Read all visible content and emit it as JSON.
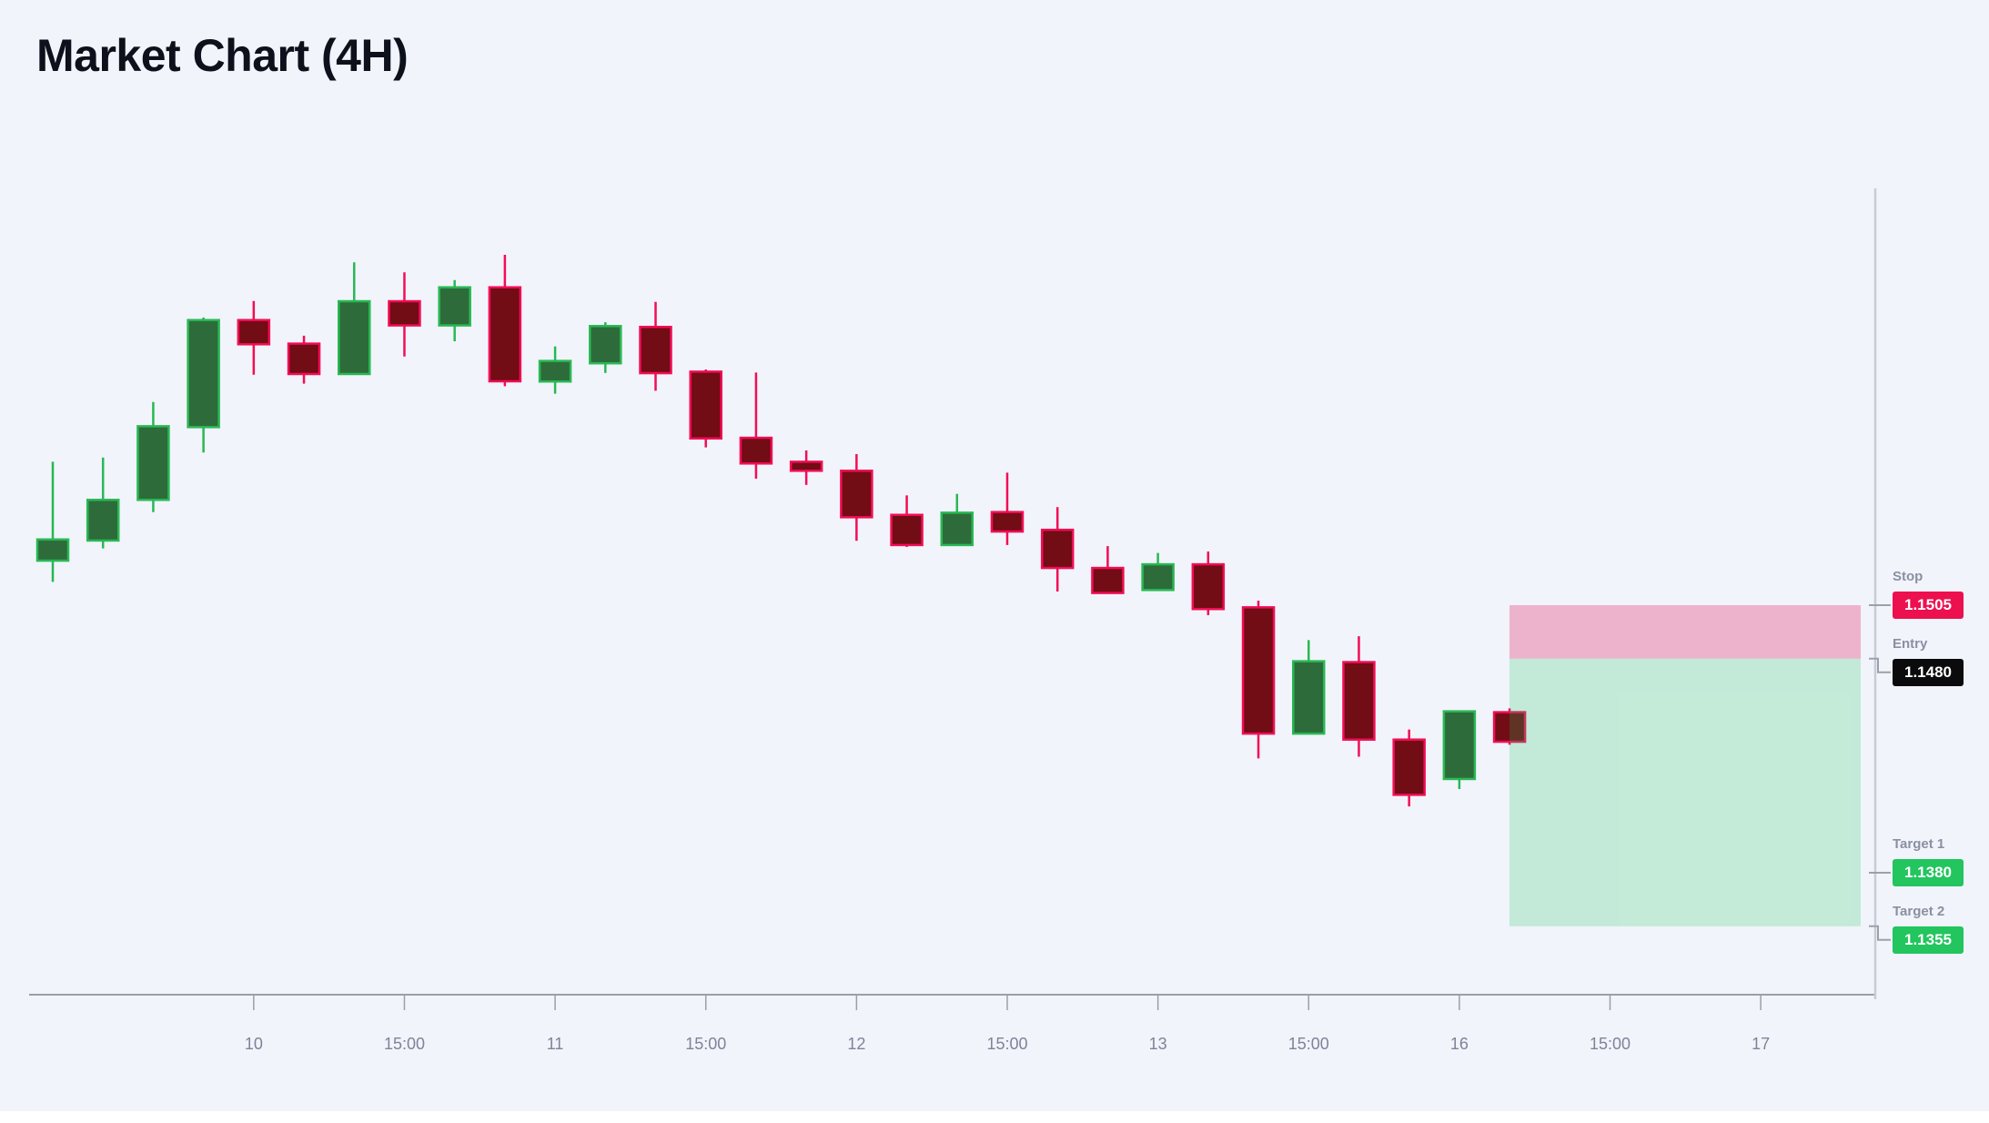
{
  "title": "Market Chart (4H)",
  "colors": {
    "background": "#f1f4fa",
    "bull_border": "#28b854",
    "bull_fill": "#2e6b3a",
    "bear_border": "#f20d56",
    "bear_fill": "#720c15",
    "axis_line": "#9b9fa8",
    "right_axis_line": "#c7ccd6",
    "tick_text": "#7f8399",
    "tag_label_text": "#8b8fa3",
    "connector": "#9ba0ac",
    "stop_zone": "rgba(233,30,99,0.30)",
    "target_zone": "rgba(34,197,94,0.22)"
  },
  "chart_data": {
    "type": "candlestick",
    "title": "Market Chart (4H)",
    "timeframe": "4H",
    "ylim": [
      1.1323,
      1.1724
    ],
    "grid": false,
    "x_tick_labels": [
      {
        "pos": 4,
        "label": "10"
      },
      {
        "pos": 7,
        "label": "15:00"
      },
      {
        "pos": 10,
        "label": "11"
      },
      {
        "pos": 13,
        "label": "15:00"
      },
      {
        "pos": 16,
        "label": "12"
      },
      {
        "pos": 19,
        "label": "15:00"
      },
      {
        "pos": 22,
        "label": "13"
      },
      {
        "pos": 25,
        "label": "15:00"
      },
      {
        "pos": 28,
        "label": "16"
      },
      {
        "pos": 31,
        "label": "15:00"
      },
      {
        "pos": 34,
        "label": "17"
      }
    ],
    "candles": [
      {
        "o": 1.15258,
        "h": 1.1572,
        "l": 1.15159,
        "c": 1.15357
      },
      {
        "o": 1.15352,
        "h": 1.1574,
        "l": 1.15315,
        "c": 1.15542
      },
      {
        "o": 1.15542,
        "h": 1.15999,
        "l": 1.15485,
        "c": 1.15886
      },
      {
        "o": 1.15882,
        "h": 1.16394,
        "l": 1.15763,
        "c": 1.16382
      },
      {
        "o": 1.16382,
        "h": 1.16471,
        "l": 1.16127,
        "c": 1.16269
      },
      {
        "o": 1.16272,
        "h": 1.16309,
        "l": 1.16085,
        "c": 1.1613
      },
      {
        "o": 1.1613,
        "h": 1.16652,
        "l": 1.1613,
        "c": 1.1647
      },
      {
        "o": 1.1647,
        "h": 1.16605,
        "l": 1.16212,
        "c": 1.16357
      },
      {
        "o": 1.16357,
        "h": 1.16569,
        "l": 1.16283,
        "c": 1.16535
      },
      {
        "o": 1.16535,
        "h": 1.16687,
        "l": 1.16073,
        "c": 1.16096
      },
      {
        "o": 1.16095,
        "h": 1.16259,
        "l": 1.16038,
        "c": 1.16191
      },
      {
        "o": 1.1618,
        "h": 1.16372,
        "l": 1.16135,
        "c": 1.16354
      },
      {
        "o": 1.1635,
        "h": 1.16467,
        "l": 1.16052,
        "c": 1.16134
      },
      {
        "o": 1.16141,
        "h": 1.16151,
        "l": 1.15787,
        "c": 1.15829
      },
      {
        "o": 1.15832,
        "h": 1.16137,
        "l": 1.15641,
        "c": 1.15712
      },
      {
        "o": 1.1572,
        "h": 1.15773,
        "l": 1.15612,
        "c": 1.15678
      },
      {
        "o": 1.15678,
        "h": 1.15756,
        "l": 1.15351,
        "c": 1.15461
      },
      {
        "o": 1.15472,
        "h": 1.15563,
        "l": 1.15322,
        "c": 1.15331
      },
      {
        "o": 1.15331,
        "h": 1.1557,
        "l": 1.15331,
        "c": 1.15482
      },
      {
        "o": 1.15485,
        "h": 1.15669,
        "l": 1.15331,
        "c": 1.15394
      },
      {
        "o": 1.15402,
        "h": 1.15508,
        "l": 1.15114,
        "c": 1.15224
      },
      {
        "o": 1.15224,
        "h": 1.15326,
        "l": 1.15104,
        "c": 1.15107
      },
      {
        "o": 1.15121,
        "h": 1.15294,
        "l": 1.15117,
        "c": 1.15241
      },
      {
        "o": 1.15241,
        "h": 1.15301,
        "l": 1.15003,
        "c": 1.15032
      },
      {
        "o": 1.1504,
        "h": 1.15071,
        "l": 1.14334,
        "c": 1.1445
      },
      {
        "o": 1.1445,
        "h": 1.14887,
        "l": 1.1445,
        "c": 1.14788
      },
      {
        "o": 1.14784,
        "h": 1.14905,
        "l": 1.14342,
        "c": 1.14422
      },
      {
        "o": 1.14422,
        "h": 1.14469,
        "l": 1.1411,
        "c": 1.14164
      },
      {
        "o": 1.14238,
        "h": 1.14558,
        "l": 1.14191,
        "c": 1.14554
      },
      {
        "o": 1.1455,
        "h": 1.14568,
        "l": 1.14398,
        "c": 1.14412
      }
    ],
    "price_lines": [
      {
        "name": "Stop",
        "value": "1.1505",
        "price": 1.1505,
        "pill_color": "#ec104f",
        "connector": "straight"
      },
      {
        "name": "Entry",
        "value": "1.1480",
        "price": 1.148,
        "pill_color": "#0b0b0d",
        "connector": "step"
      },
      {
        "name": "Target 1",
        "value": "1.1380",
        "price": 1.138,
        "pill_color": "#22c55e",
        "connector": "straight"
      },
      {
        "name": "Target 2",
        "value": "1.1355",
        "price": 1.1355,
        "pill_color": "#22c55e",
        "connector": "step"
      }
    ],
    "zones": [
      {
        "name": "stop-zone",
        "from": 1.1505,
        "to": 1.148,
        "color": "rgba(233,30,99,0.30)"
      },
      {
        "name": "target-zone",
        "from": 1.148,
        "to": 1.1355,
        "color": "rgba(34,197,94,0.22)"
      }
    ],
    "legend": null,
    "xlabel": "",
    "ylabel": ""
  }
}
